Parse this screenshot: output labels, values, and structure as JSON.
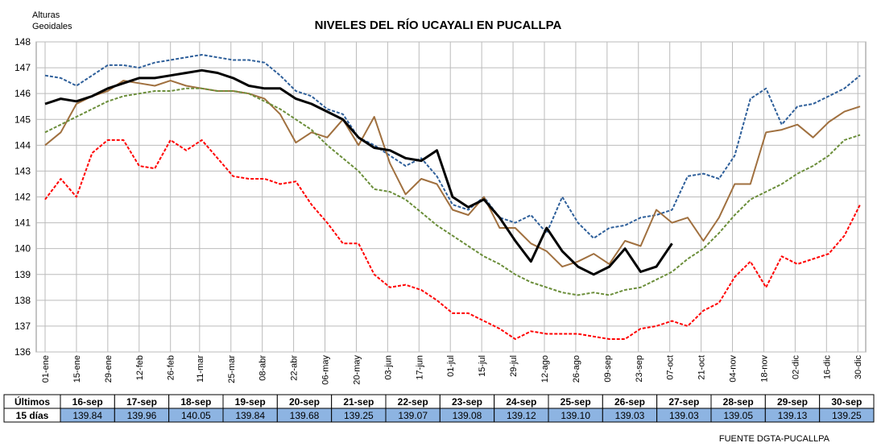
{
  "chart_data": {
    "type": "line",
    "title": "NIVELES DEL RÍO UCAYALI EN PUCALLPA",
    "y_label": [
      "Alturas",
      "Geoidales"
    ],
    "source": "FUENTE DGTA-PUCALLPA",
    "grid": true,
    "x": [
      1,
      8,
      15,
      22,
      29,
      36,
      43,
      50,
      57,
      64,
      71,
      78,
      85,
      92,
      99,
      106,
      113,
      120,
      127,
      134,
      141,
      148,
      155,
      162,
      169,
      176,
      183,
      190,
      197,
      204,
      211,
      218,
      225,
      232,
      239,
      246,
      253,
      260,
      267,
      274,
      281,
      288,
      295,
      302,
      309,
      316,
      323,
      330,
      337,
      344,
      351,
      358,
      365
    ],
    "xlim": [
      1,
      365
    ],
    "xticks": [
      {
        "value": 1,
        "label": "01-ene"
      },
      {
        "value": 15,
        "label": "15-ene"
      },
      {
        "value": 29,
        "label": "29-ene"
      },
      {
        "value": 43,
        "label": "12-feb"
      },
      {
        "value": 57,
        "label": "26-feb"
      },
      {
        "value": 70,
        "label": "11-mar"
      },
      {
        "value": 84,
        "label": "25-mar"
      },
      {
        "value": 98,
        "label": "08-abr"
      },
      {
        "value": 112,
        "label": "22-abr"
      },
      {
        "value": 126,
        "label": "06-may"
      },
      {
        "value": 140,
        "label": "20-may"
      },
      {
        "value": 154,
        "label": "03-jun"
      },
      {
        "value": 168,
        "label": "17-jun"
      },
      {
        "value": 182,
        "label": "01-jul"
      },
      {
        "value": 196,
        "label": "15-jul"
      },
      {
        "value": 210,
        "label": "29-jul"
      },
      {
        "value": 224,
        "label": "12-ago"
      },
      {
        "value": 238,
        "label": "26-ago"
      },
      {
        "value": 252,
        "label": "09-sep"
      },
      {
        "value": 266,
        "label": "23-sep"
      },
      {
        "value": 280,
        "label": "07-oct"
      },
      {
        "value": 294,
        "label": "21-oct"
      },
      {
        "value": 308,
        "label": "04-nov"
      },
      {
        "value": 322,
        "label": "18-nov"
      },
      {
        "value": 336,
        "label": "02-dic"
      },
      {
        "value": 350,
        "label": "16-dic"
      },
      {
        "value": 364,
        "label": "30-dic"
      }
    ],
    "ylim": [
      136,
      148
    ],
    "yticks": [
      136,
      137,
      138,
      139,
      140,
      141,
      142,
      143,
      144,
      145,
      146,
      147,
      148
    ],
    "series": [
      {
        "color": "#2e5f9a",
        "dashed": true,
        "values": [
          146.7,
          146.6,
          146.3,
          146.7,
          147.1,
          147.1,
          147.0,
          147.2,
          147.3,
          147.4,
          147.5,
          147.4,
          147.3,
          147.3,
          147.2,
          146.7,
          146.1,
          145.9,
          145.4,
          145.2,
          144.3,
          144.0,
          143.6,
          143.2,
          143.5,
          142.8,
          141.7,
          141.5,
          142.0,
          141.2,
          141.0,
          141.3,
          140.6,
          142.0,
          141.0,
          140.4,
          140.8,
          140.9,
          141.2,
          141.3,
          141.5,
          142.8,
          142.9,
          142.7,
          143.6,
          145.8,
          146.2,
          144.8,
          145.5,
          145.6,
          145.9,
          146.2,
          146.7
        ]
      },
      {
        "color": "#a0703f",
        "dashed": false,
        "values": [
          144.0,
          144.5,
          145.6,
          145.9,
          146.1,
          146.5,
          146.4,
          146.3,
          146.5,
          146.3,
          146.2,
          146.1,
          146.1,
          146.0,
          145.8,
          145.2,
          144.1,
          144.5,
          144.3,
          145.0,
          144.0,
          145.1,
          143.3,
          142.1,
          142.7,
          142.5,
          141.5,
          141.3,
          142.0,
          140.8,
          140.8,
          140.2,
          139.9,
          139.3,
          139.5,
          139.8,
          139.4,
          140.3,
          140.1,
          141.5,
          141.0,
          141.2,
          140.3,
          141.2,
          142.5,
          142.5,
          144.5,
          144.6,
          144.8,
          144.3,
          144.9,
          145.3,
          145.5
        ]
      },
      {
        "color": "#6b8e3a",
        "dashed": true,
        "values": [
          144.5,
          144.8,
          145.1,
          145.4,
          145.7,
          145.9,
          146.0,
          146.1,
          146.1,
          146.2,
          146.2,
          146.1,
          146.1,
          146.0,
          145.7,
          145.4,
          145.0,
          144.6,
          144.0,
          143.5,
          143.0,
          142.3,
          142.2,
          141.9,
          141.4,
          140.9,
          140.5,
          140.1,
          139.7,
          139.4,
          139.0,
          138.7,
          138.5,
          138.3,
          138.2,
          138.3,
          138.2,
          138.4,
          138.5,
          138.8,
          139.1,
          139.6,
          140.0,
          140.6,
          141.3,
          141.9,
          142.2,
          142.5,
          142.9,
          143.2,
          143.6,
          144.2,
          144.4
        ]
      },
      {
        "color": "#ff0000",
        "dashed": true,
        "values": [
          141.9,
          142.7,
          142.0,
          143.7,
          144.2,
          144.2,
          143.2,
          143.1,
          144.2,
          143.8,
          144.2,
          143.5,
          142.8,
          142.7,
          142.7,
          142.5,
          142.6,
          141.7,
          141.0,
          140.2,
          140.2,
          139.0,
          138.5,
          138.6,
          138.4,
          138.0,
          137.5,
          137.5,
          137.2,
          136.9,
          136.5,
          136.8,
          136.7,
          136.7,
          136.7,
          136.6,
          136.5,
          136.5,
          136.9,
          137.0,
          137.2,
          137.0,
          137.6,
          137.9,
          138.9,
          139.5,
          138.5,
          139.7,
          139.4,
          139.6,
          139.8,
          140.5,
          141.7
        ]
      },
      {
        "color": "#000000",
        "dashed": false,
        "width": 3,
        "values": [
          145.6,
          145.8,
          145.7,
          145.9,
          146.2,
          146.4,
          146.6,
          146.6,
          146.7,
          146.8,
          146.9,
          146.8,
          146.6,
          146.3,
          146.2,
          146.2,
          145.8,
          145.6,
          145.3,
          145.0,
          144.3,
          143.9,
          143.8,
          143.5,
          143.4,
          143.8,
          142.0,
          141.6,
          141.9,
          141.2,
          140.3,
          139.5,
          140.8,
          139.9,
          139.3,
          139.0,
          139.3,
          140.0,
          139.1,
          139.3,
          140.2,
          null,
          null,
          null,
          null,
          null,
          null,
          null,
          null,
          null,
          null,
          null,
          null
        ]
      }
    ]
  },
  "table": {
    "row_labels": [
      "Últimos",
      "15 días"
    ],
    "dates": [
      "16-sep",
      "17-sep",
      "18-sep",
      "19-sep",
      "20-sep",
      "21-sep",
      "22-sep",
      "23-sep",
      "24-sep",
      "25-sep",
      "26-sep",
      "27-sep",
      "28-sep",
      "29-sep",
      "30-sep"
    ],
    "values": [
      "139.84",
      "139.96",
      "140.05",
      "139.84",
      "139.68",
      "139.25",
      "139.07",
      "139.08",
      "139.12",
      "139.10",
      "139.03",
      "139.03",
      "139.05",
      "139.13",
      "139.25"
    ]
  }
}
